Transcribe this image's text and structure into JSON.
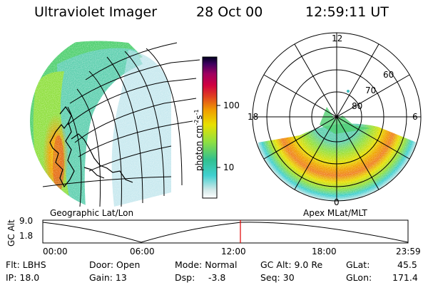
{
  "header": {
    "instrument": "Ultraviolet Imager",
    "date": "28 Oct 00",
    "time": "12:59:11 UT"
  },
  "left_panel": {
    "caption": "Geographic Lat/Lon"
  },
  "right_panel": {
    "caption": "Apex MLat/MLT",
    "mlt_labels": {
      "top": "12",
      "left": "18",
      "right": "6",
      "bottom": "0"
    },
    "mlat_labels": [
      "60",
      "70",
      "80"
    ]
  },
  "colorbar": {
    "unit_text": "photon cm",
    "unit_exp1": "-2",
    "unit_s": "s",
    "unit_exp2": "-1",
    "ticks": [
      "100",
      "10"
    ],
    "scale": "log",
    "colors": [
      "#ffffff",
      "#d0e8e8",
      "#40d0d0",
      "#30c090",
      "#90e040",
      "#e8e000",
      "#f0a000",
      "#e04020",
      "#d00040",
      "#a00060",
      "#400060",
      "#000020"
    ]
  },
  "timeline": {
    "ylabel": "GC Alt",
    "yticks": [
      "9.0",
      "1.8"
    ],
    "xticks": [
      "00:00",
      "06:00",
      "12:00",
      "18:00",
      "23:59"
    ],
    "marker_color": "#e00000"
  },
  "footer": {
    "filter": "Flt: LBHS",
    "ip": "IP: 18.0",
    "door": "Door: Open",
    "gain": "Gain: 13",
    "mode": "Mode: Normal",
    "dsp_label": "Dsp:",
    "dsp_value": "-3.8",
    "gc_alt": "GC Alt: 9.0 Re",
    "seq": "Seq: 30",
    "glat_label": "GLat:",
    "glat_value": "45.5",
    "glon_label": "GLon:",
    "glon_value": "171.4"
  }
}
